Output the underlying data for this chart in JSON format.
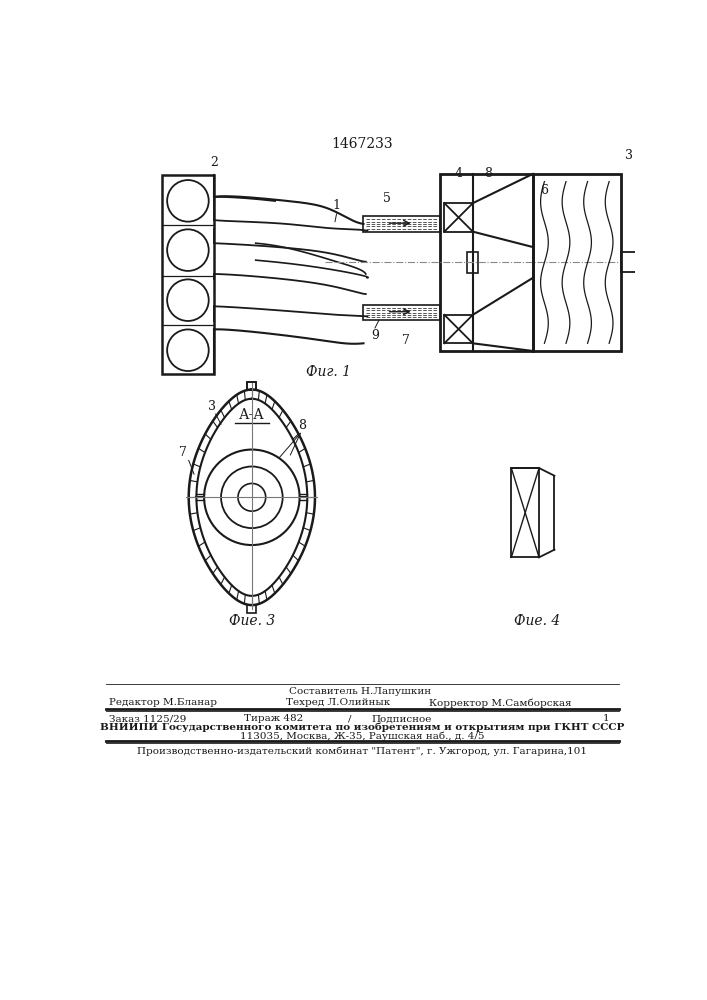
{
  "patent_number": "1467233",
  "fig1_caption": "Фиг. 1",
  "fig3_caption": "Фие. 3",
  "fig4_caption": "Фие. 4",
  "aa_label": "А-А",
  "footer_line0": "Составитель Н.Лапушкин",
  "footer_line1_left": "Редактор М.Бланар",
  "footer_line1_mid": "Техред Л.Олийнык",
  "footer_line1_right": "Корректор М.Самборская",
  "footer_line2a": "Заказ 1125/29",
  "footer_line2b": "Тираж 482",
  "footer_line2c": "/",
  "footer_line2d": "Подписное",
  "footer_line2e": "1",
  "footer_line3": "ВНИИПИ Государственного комитета по изобретениям и открытиям при ГКНТ СССР",
  "footer_line4": "113035, Москва, Ж-35, Раушская наб., д. 4/5",
  "footer_line5": "Производственно-издательский комбинат \"Патент\", г. Ужгород, ул. Гагарина,101",
  "bg_color": "#ffffff",
  "line_color": "#1a1a1a"
}
